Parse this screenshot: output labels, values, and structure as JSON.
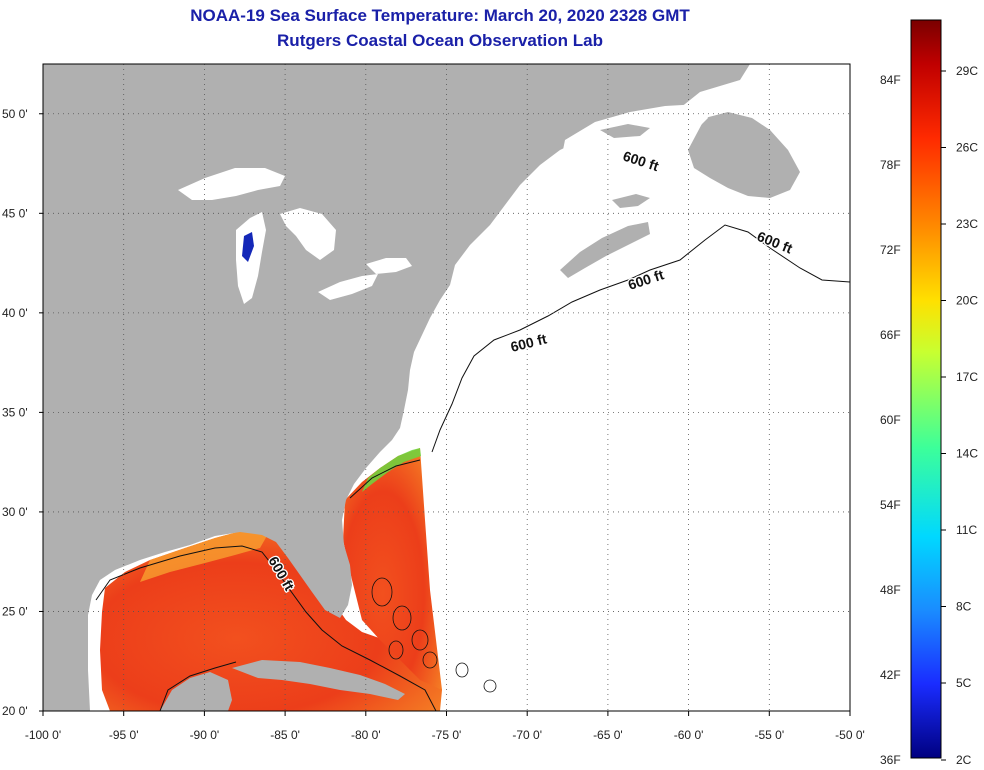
{
  "title": {
    "line1": "NOAA-19 Sea Surface Temperature:  March 20, 2020 2328 GMT",
    "line2": "Rutgers Coastal Ocean Observation Lab"
  },
  "map": {
    "lon_range": [
      -100,
      -50
    ],
    "lat_range": [
      20,
      52.5
    ],
    "lon_ticks": [
      "-100 0'",
      "-95 0'",
      "-90 0'",
      "-85 0'",
      "-80 0'",
      "-75 0'",
      "-70 0'",
      "-65 0'",
      "-60 0'",
      "-55 0'",
      "-50 0'"
    ],
    "lat_ticks": [
      "20 0'",
      "25 0'",
      "30 0'",
      "35 0'",
      "40 0'",
      "45 0'",
      "50 0'"
    ],
    "grid": "dotted",
    "contour_label": "600 ft",
    "colors": {
      "land": "#b0b0b0",
      "ocean_nodata": "#ffffff",
      "sst_warm": "#f04a1c",
      "sst_hot": "#e8331a"
    }
  },
  "colorbar": {
    "fahrenheit_labels": [
      "84F",
      "78F",
      "72F",
      "66F",
      "60F",
      "54F",
      "48F",
      "42F",
      "36F"
    ],
    "celsius_labels": [
      "29C",
      "26C",
      "23C",
      "20C",
      "17C",
      "14C",
      "11C",
      "8C",
      "5C",
      "2C"
    ],
    "colors": [
      "#7a0000",
      "#c00000",
      "#ff2a00",
      "#ff7a00",
      "#ffd800",
      "#b8ff3a",
      "#3cff9a",
      "#00e8ff",
      "#1a8cff",
      "#1a2cff",
      "#000080"
    ]
  }
}
